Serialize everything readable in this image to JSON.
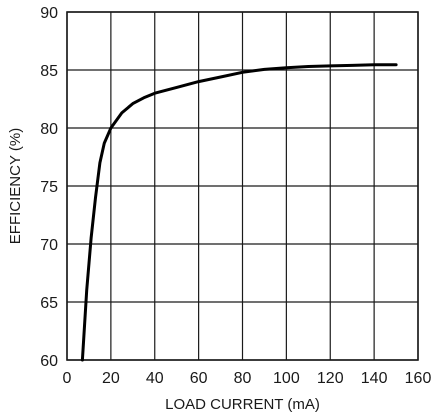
{
  "chart_data": {
    "type": "line",
    "xlabel": "LOAD CURRENT (mA)",
    "ylabel": "EFFICIENCY (%)",
    "xlim": [
      0,
      160
    ],
    "ylim": [
      60,
      90
    ],
    "x_ticks": [
      0,
      20,
      40,
      60,
      80,
      100,
      120,
      140,
      160
    ],
    "y_ticks": [
      60,
      65,
      70,
      75,
      80,
      85,
      90
    ],
    "x_tick_labels": [
      "0",
      "20",
      "40",
      "60",
      "80",
      "100",
      "120",
      "140",
      "160"
    ],
    "y_tick_labels": [
      "60",
      "65",
      "70",
      "75",
      "80",
      "85",
      "90"
    ],
    "grid": true,
    "series": [
      {
        "x": [
          7,
          9,
          11,
          13,
          15,
          17,
          20,
          25,
          30,
          35,
          40,
          50,
          60,
          70,
          80,
          90,
          100,
          110,
          120,
          130,
          140,
          150
        ],
        "y": [
          60,
          66,
          70.5,
          74,
          77,
          78.7,
          80,
          81.3,
          82.1,
          82.6,
          83,
          83.5,
          84,
          84.4,
          84.8,
          85.05,
          85.2,
          85.3,
          85.35,
          85.4,
          85.45,
          85.45
        ]
      }
    ]
  },
  "colors": {
    "line": "#000000",
    "grid": "#1a1a1a",
    "background": "#ffffff"
  }
}
